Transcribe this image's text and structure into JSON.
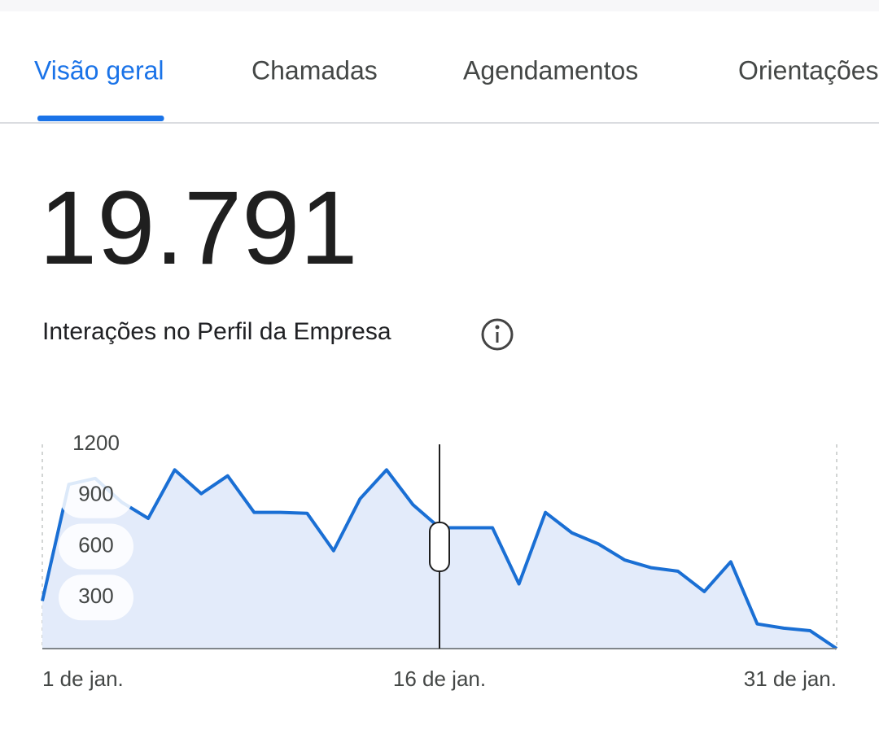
{
  "tabs": [
    "Visão geral",
    "Chamadas",
    "Agendamentos",
    "Orientações"
  ],
  "active_tab": 0,
  "metric": {
    "value": "19.791",
    "label": "Interações no Perfil da Empresa"
  },
  "chart_data": {
    "type": "area",
    "categories": [
      "1 de jan.",
      null,
      null,
      null,
      null,
      null,
      null,
      null,
      null,
      null,
      null,
      null,
      null,
      null,
      null,
      "16 de jan.",
      null,
      null,
      null,
      null,
      null,
      null,
      null,
      null,
      null,
      null,
      null,
      null,
      null,
      null,
      "31 de jan."
    ],
    "values": [
      280,
      965,
      1000,
      860,
      765,
      1050,
      910,
      1015,
      800,
      800,
      795,
      575,
      880,
      1050,
      845,
      710,
      710,
      710,
      380,
      800,
      680,
      615,
      520,
      475,
      455,
      335,
      510,
      145,
      120,
      105,
      0
    ],
    "color": "#1a6fd4",
    "fill": "#e3ebfa",
    "ylim": [
      0,
      1200
    ],
    "yticks": [
      300,
      600,
      900,
      1200
    ]
  }
}
